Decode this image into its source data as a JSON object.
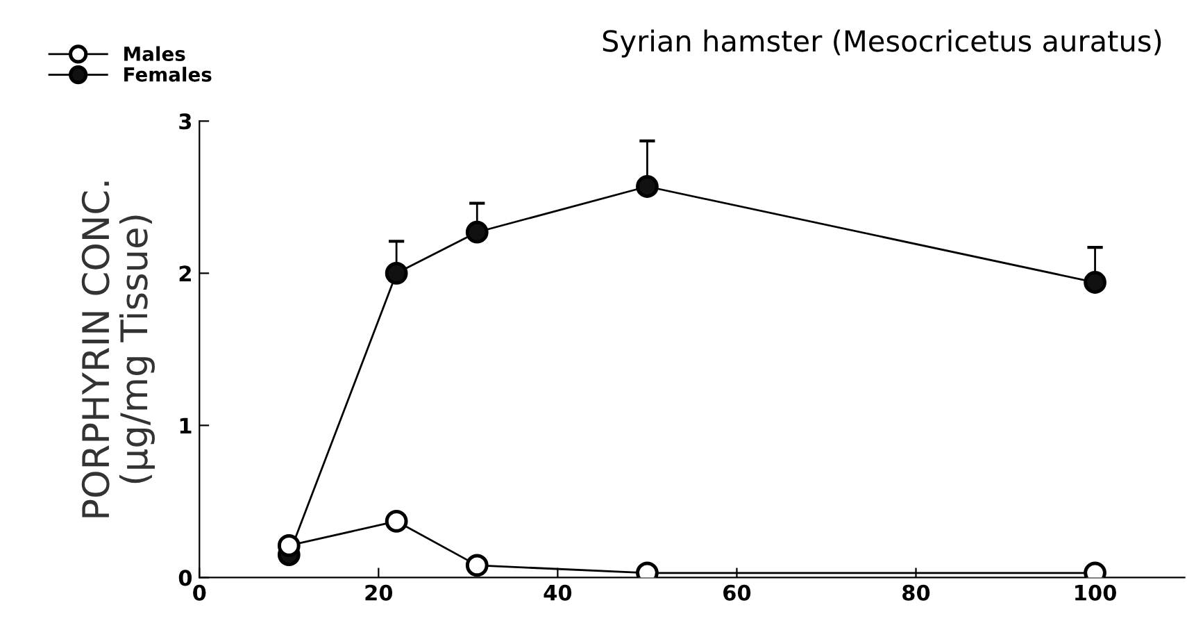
{
  "chart_data": {
    "type": "line",
    "title": "Syrian hamster (Mesocricetus auratus)",
    "ylabel": "PORPHYRIN CONC.\n(μg/mg Tissue)",
    "x": [
      10,
      22,
      31,
      50,
      100
    ],
    "series": [
      {
        "name": "Males",
        "color": "#ffffff",
        "values": [
          0.21,
          0.37,
          0.08,
          0.03,
          0.03
        ]
      },
      {
        "name": "Females",
        "color": "#111111",
        "values": [
          0.15,
          2.0,
          2.27,
          2.57,
          1.94
        ],
        "errors": [
          null,
          [
            2.0,
            2.21
          ],
          [
            2.27,
            2.46
          ],
          [
            2.57,
            2.87
          ],
          [
            1.94,
            2.17
          ]
        ]
      }
    ],
    "xlim": [
      0,
      110
    ],
    "ylim": [
      0,
      3
    ],
    "xticks": [
      0,
      20,
      40,
      60,
      80,
      100
    ],
    "yticks": [
      0,
      1,
      2,
      3
    ],
    "grid": false,
    "legend": "top left",
    "marker": "circle",
    "line_style": "solid"
  }
}
